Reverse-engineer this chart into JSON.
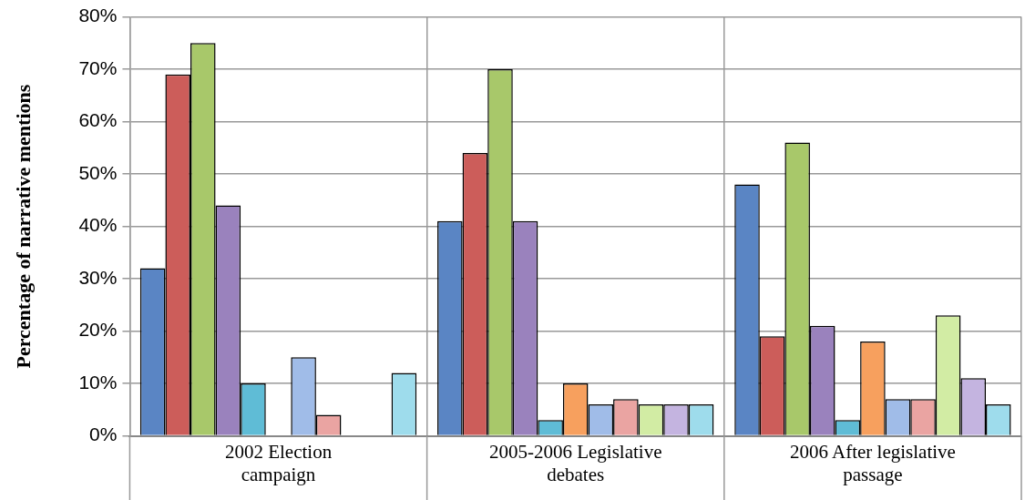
{
  "chart_data": {
    "type": "bar",
    "ylabel": "Percentage of narrative mentions",
    "categories": [
      "2002 Election campaign",
      "2005-2006 Legislative debates",
      "2006 After legislative passage"
    ],
    "series": [
      {
        "color": "#5a85c4",
        "values": [
          32,
          41,
          48
        ]
      },
      {
        "color": "#cc5d5a",
        "values": [
          69,
          54,
          19
        ]
      },
      {
        "color": "#a8c86a",
        "values": [
          75,
          70,
          56
        ]
      },
      {
        "color": "#9a82bd",
        "values": [
          44,
          41,
          21
        ]
      },
      {
        "color": "#5fbcd6",
        "values": [
          10,
          3,
          3
        ]
      },
      {
        "color": "#f7a05e",
        "values": [
          0,
          10,
          18
        ]
      },
      {
        "color": "#a0bce8",
        "values": [
          15,
          6,
          7
        ]
      },
      {
        "color": "#eaa4a2",
        "values": [
          4,
          7,
          7
        ]
      },
      {
        "color": "#d2eca4",
        "values": [
          0,
          6,
          23
        ]
      },
      {
        "color": "#c4b4e0",
        "values": [
          0,
          6,
          11
        ]
      },
      {
        "color": "#9edcec",
        "values": [
          12,
          6,
          6
        ]
      }
    ],
    "ylim": [
      0,
      80
    ],
    "yticks": [
      {
        "value": 0,
        "label": "0%"
      },
      {
        "value": 10,
        "label": "10%"
      },
      {
        "value": 20,
        "label": "20%"
      },
      {
        "value": 30,
        "label": "30%"
      },
      {
        "value": 40,
        "label": "40%"
      },
      {
        "value": 50,
        "label": "50%"
      },
      {
        "value": 60,
        "label": "60%"
      },
      {
        "value": 70,
        "label": "70%"
      },
      {
        "value": 80,
        "label": "80%"
      }
    ],
    "grid": true,
    "legend": false
  }
}
